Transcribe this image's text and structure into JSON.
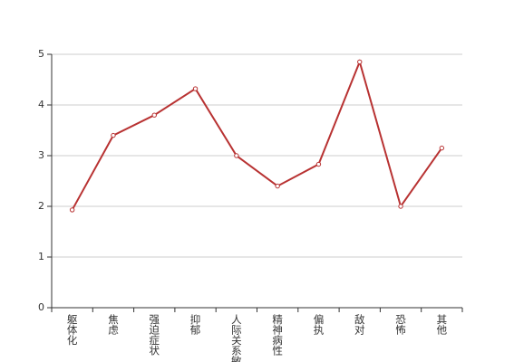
{
  "chart_data": {
    "type": "line",
    "categories": [
      "躯体化",
      "焦虑",
      "强迫症状",
      "抑郁",
      "人际关系敏感",
      "精神病性",
      "偏执",
      "敌对",
      "恐怖",
      "其他"
    ],
    "series": [
      {
        "color": "#b83232",
        "values": [
          1.93,
          3.4,
          3.8,
          4.32,
          3.0,
          2.4,
          2.83,
          4.85,
          2.0,
          3.15
        ]
      }
    ],
    "ylim": [
      0,
      5
    ],
    "yticks": [
      0,
      1,
      2,
      3,
      4,
      5
    ],
    "grid": true
  }
}
